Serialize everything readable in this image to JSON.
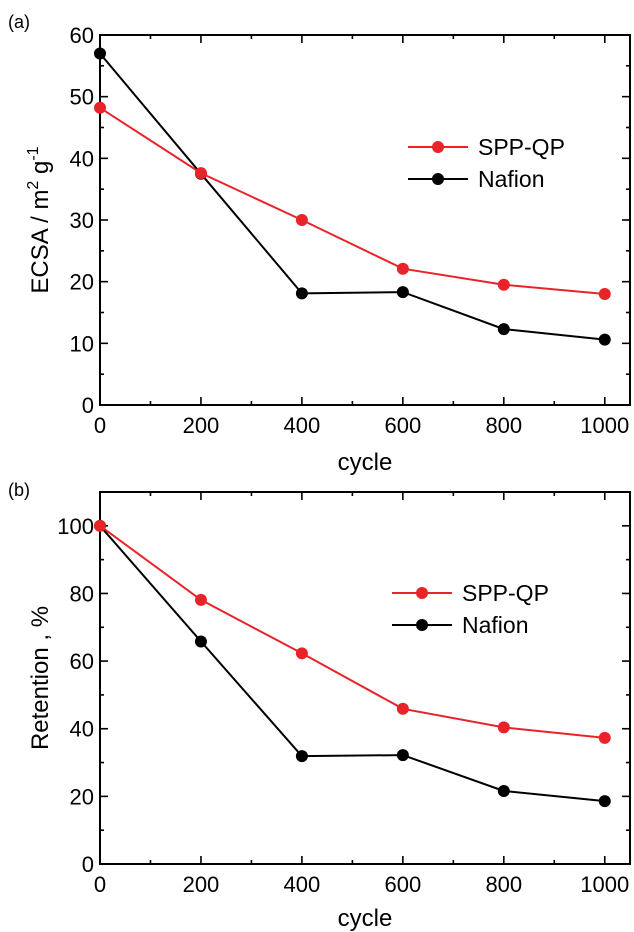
{
  "chart_data": [
    {
      "type": "line",
      "panel_label": "(a)",
      "xlabel": "cycle",
      "ylabel": "ECSA / m",
      "ylabel_sup1": "2",
      "ylabel_mid": " g",
      "ylabel_sup2": "-1",
      "xlim": [
        0,
        1050
      ],
      "ylim": [
        0,
        60
      ],
      "xticks": [
        0,
        200,
        400,
        600,
        800,
        1000
      ],
      "yticks": [
        0,
        10,
        20,
        30,
        40,
        50,
        60
      ],
      "legend_position": "center-right",
      "grid": false,
      "x": [
        0,
        200,
        400,
        600,
        800,
        1000
      ],
      "series": [
        {
          "name": "SPP-QP",
          "color": "#e8242a",
          "values": [
            48.2,
            37.6,
            30.0,
            22.1,
            19.5,
            18.0
          ]
        },
        {
          "name": "Nafion",
          "color": "#000000",
          "values": [
            57.0,
            37.5,
            18.1,
            18.3,
            12.3,
            10.6
          ]
        }
      ]
    },
    {
      "type": "line",
      "panel_label": "(b)",
      "xlabel": "cycle",
      "ylabel": "Retention , %",
      "xlim": [
        0,
        1050
      ],
      "ylim": [
        0,
        110
      ],
      "xticks": [
        0,
        200,
        400,
        600,
        800,
        1000
      ],
      "yticks": [
        0,
        20,
        40,
        60,
        80,
        100
      ],
      "legend_position": "center-right",
      "grid": false,
      "x": [
        0,
        200,
        400,
        600,
        800,
        1000
      ],
      "series": [
        {
          "name": "SPP-QP",
          "color": "#e8242a",
          "values": [
            100,
            78.1,
            62.3,
            45.9,
            40.4,
            37.3
          ]
        },
        {
          "name": "Nafion",
          "color": "#000000",
          "values": [
            100,
            65.8,
            31.9,
            32.2,
            21.6,
            18.6
          ]
        }
      ]
    }
  ]
}
